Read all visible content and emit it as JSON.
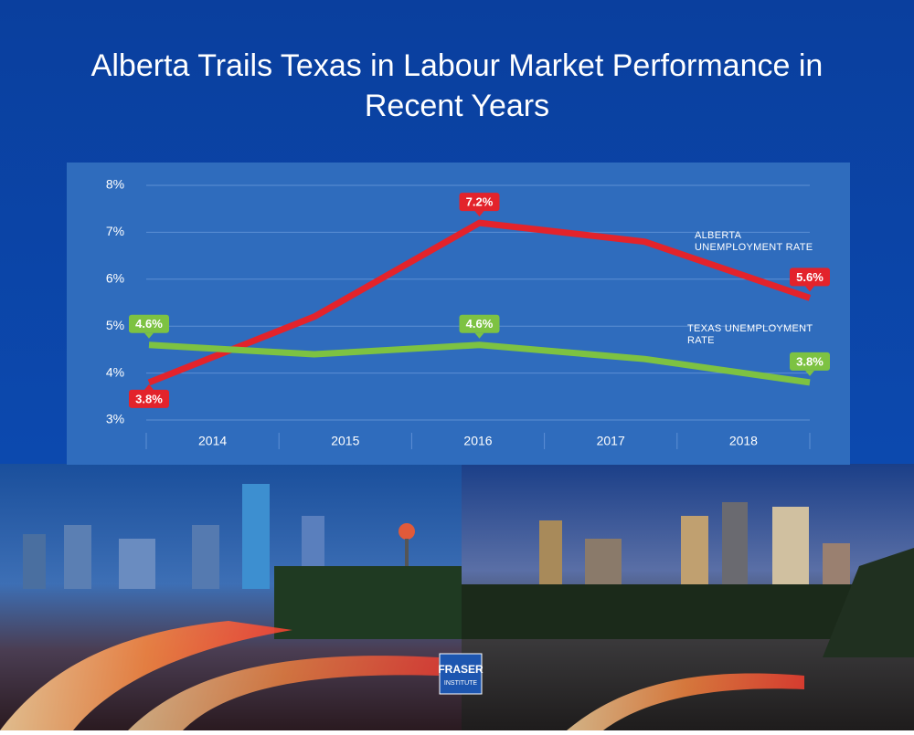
{
  "chart_data": {
    "type": "line",
    "title": "Alberta Trails Texas in Labour Market Performance in Recent Years",
    "categories": [
      "2014",
      "2015",
      "2016",
      "2017",
      "2018"
    ],
    "series": [
      {
        "name": "ALBERTA UNEMPLOYMENT RATE",
        "color": "#e3232b",
        "values": [
          3.8,
          5.2,
          7.2,
          6.8,
          5.6
        ],
        "value_labels": [
          "3.8%",
          null,
          "7.2%",
          null,
          "5.6%"
        ]
      },
      {
        "name": "TEXAS UNEMPLOYMENT RATE",
        "color": "#7dc242",
        "values": [
          4.6,
          4.4,
          4.6,
          4.3,
          3.8
        ],
        "value_labels": [
          "4.6%",
          null,
          "4.6%",
          null,
          "3.8%"
        ]
      }
    ],
    "ylim": [
      3,
      8
    ],
    "yticks": [
      {
        "value": 3,
        "label": "3%"
      },
      {
        "value": 4,
        "label": "4%"
      },
      {
        "value": 5,
        "label": "5%"
      },
      {
        "value": 6,
        "label": "6%"
      },
      {
        "value": 7,
        "label": "7%"
      },
      {
        "value": 8,
        "label": "8%"
      }
    ],
    "grid": true
  },
  "logo": {
    "name": "FRASER",
    "subtitle": "INSTITUTE"
  }
}
